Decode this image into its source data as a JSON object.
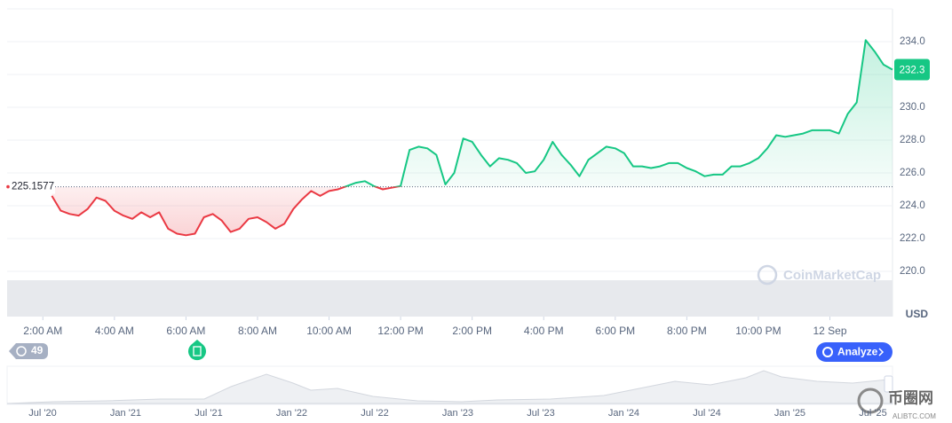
{
  "chart_data": {
    "type": "line",
    "baseline": 225.1577,
    "y_unit": "USD",
    "watermark": "CoinMarketCap",
    "up_color": "#16c784",
    "down_color": "#ea3943",
    "grid": true,
    "x": [
      2.25,
      2.5,
      2.75,
      3,
      3.25,
      3.5,
      3.75,
      4,
      4.25,
      4.5,
      4.75,
      5,
      5.25,
      5.5,
      5.75,
      6,
      6.25,
      6.5,
      6.75,
      7,
      7.25,
      7.5,
      7.75,
      8,
      8.25,
      8.5,
      8.75,
      9,
      9.25,
      9.5,
      9.75,
      10,
      10.25,
      10.5,
      10.75,
      11,
      11.25,
      11.5,
      11.75,
      12,
      12.25,
      12.5,
      12.75,
      13,
      13.25,
      13.5,
      13.75,
      14,
      14.25,
      14.5,
      14.75,
      15,
      15.25,
      15.5,
      15.75,
      16,
      16.25,
      16.5,
      16.75,
      17,
      17.25,
      17.5,
      17.75,
      18,
      18.25,
      18.5,
      18.75,
      19,
      19.25,
      19.5,
      19.75,
      20,
      20.25,
      20.5,
      20.75,
      21,
      21.25,
      21.5,
      21.75,
      22,
      22.25,
      22.5,
      22.75,
      23,
      23.25,
      23.5,
      23.75,
      24,
      24.25,
      24.5,
      24.75,
      25,
      25.25,
      25.5,
      25.75
    ],
    "values": [
      224.6,
      223.7,
      223.5,
      223.4,
      223.8,
      224.5,
      224.3,
      223.7,
      223.4,
      223.2,
      223.6,
      223.3,
      223.6,
      222.6,
      222.3,
      222.2,
      222.3,
      223.3,
      223.5,
      223.1,
      222.4,
      222.6,
      223.2,
      223.3,
      223.0,
      222.6,
      222.9,
      223.8,
      224.4,
      224.9,
      224.6,
      224.9,
      225.0,
      225.2,
      225.4,
      225.5,
      225.2,
      225.0,
      225.1,
      225.2,
      227.4,
      227.6,
      227.5,
      227.1,
      225.3,
      226.0,
      228.1,
      227.9,
      227.1,
      226.4,
      226.9,
      226.8,
      226.6,
      226.0,
      226.1,
      226.8,
      227.9,
      227.1,
      226.5,
      225.8,
      226.8,
      227.2,
      227.6,
      227.5,
      227.2,
      226.4,
      226.4,
      226.3,
      226.4,
      226.6,
      226.6,
      226.3,
      226.1,
      225.8,
      225.9,
      225.9,
      226.4,
      226.4,
      226.6,
      226.9,
      227.5,
      228.3,
      228.2,
      228.3,
      228.4,
      228.6,
      228.6,
      228.6,
      228.4,
      229.6,
      230.3,
      234.1,
      233.4,
      232.6,
      232.3
    ],
    "xlim": [
      1.0,
      25.75
    ],
    "ylim": [
      219.46,
      236.0
    ],
    "yticks": [
      {
        "value": 220,
        "label": "220.0"
      },
      {
        "value": 222,
        "label": "222.0"
      },
      {
        "value": 224,
        "label": "224.0"
      },
      {
        "value": 226,
        "label": "226.0"
      },
      {
        "value": 228,
        "label": "228.0"
      },
      {
        "value": 230,
        "label": "230.0"
      },
      {
        "value": 232,
        "label": "232.0"
      },
      {
        "value": 234,
        "label": "234.0"
      }
    ],
    "xticks": [
      {
        "value": 2,
        "label": "2:00 AM"
      },
      {
        "value": 4,
        "label": "4:00 AM"
      },
      {
        "value": 6,
        "label": "6:00 AM"
      },
      {
        "value": 8,
        "label": "8:00 AM"
      },
      {
        "value": 10,
        "label": "10:00 AM"
      },
      {
        "value": 12,
        "label": "12:00 PM"
      },
      {
        "value": 14,
        "label": "2:00 PM"
      },
      {
        "value": 16,
        "label": "4:00 PM"
      },
      {
        "value": 18,
        "label": "6:00 PM"
      },
      {
        "value": 20,
        "label": "8:00 PM"
      },
      {
        "value": 22,
        "label": "10:00 PM"
      },
      {
        "value": 24,
        "label": "12 Sep"
      }
    ],
    "events_count": "49",
    "analyze_button": "Analyze",
    "navigator_labels": [
      "Jul '20",
      "Jan '21",
      "Jul '21",
      "Jan '22",
      "Jul '22",
      "Jan '23",
      "Jul '23",
      "Jan '24",
      "Jul '24",
      "Jan '25",
      "Jul '25"
    ],
    "site_watermark": "币圈网",
    "site_url": "ALIBTC.COM"
  }
}
